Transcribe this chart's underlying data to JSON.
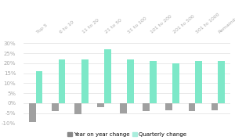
{
  "categories": [
    "Top 5",
    "6 to 10",
    "11 to 20",
    "21 to 50",
    "51 to 100",
    "101 to 200",
    "201 to 500",
    "501 to 1000",
    "Remainder"
  ],
  "year_on_year": [
    -9.5,
    -4.0,
    -5.5,
    -2.0,
    -5.0,
    -4.0,
    -3.5,
    -4.0,
    -3.5
  ],
  "quarterly": [
    16.0,
    22.0,
    22.0,
    27.0,
    22.0,
    21.0,
    20.0,
    21.0,
    21.0
  ],
  "bar_color_yoy": "#a0a0a0",
  "bar_color_q": "#7de8c8",
  "background_color": "#ffffff",
  "grid_color": "#e0e0e0",
  "ylim": [
    -10,
    32
  ],
  "yticks": [
    -10,
    -5,
    0,
    5,
    10,
    15,
    20,
    25,
    30
  ],
  "ytick_labels": [
    "-10%",
    "-5%",
    "0%",
    "5%",
    "10%",
    "15%",
    "20%",
    "25%",
    "30%"
  ],
  "legend_yoy": "Year on year change",
  "legend_q": "Quarterly change",
  "bar_width": 0.28,
  "fontsize_ticks": 5.0,
  "fontsize_legend": 5.0,
  "fontsize_xticks": 4.5,
  "tick_color": "#aaaaaa",
  "legend_marker_yoy": "#888888",
  "legend_marker_q": "#aaeedd"
}
